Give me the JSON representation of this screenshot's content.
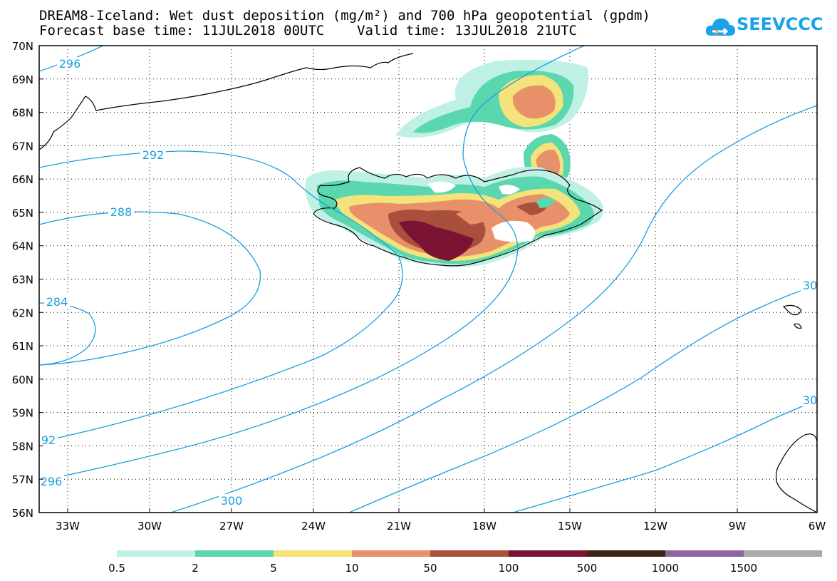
{
  "title": {
    "line1": "DREAM8-Iceland: Wet dust deposition (mg/m²) and 700 hPa geopotential (gpdm)",
    "line2": "Forecast base time: 11JUL2018 00UTC    Valid time: 13JUL2018 21UTC"
  },
  "logo": {
    "text": "SEEVCCC",
    "icon": "cloud-logo-icon"
  },
  "map": {
    "lat_labels": [
      "70N",
      "69N",
      "68N",
      "67N",
      "66N",
      "65N",
      "64N",
      "63N",
      "62N",
      "61N",
      "60N",
      "59N",
      "58N",
      "57N",
      "56N"
    ],
    "lon_labels": [
      "33W",
      "30W",
      "27W",
      "24W",
      "21W",
      "18W",
      "15W",
      "12W",
      "9W",
      "6W"
    ],
    "contour_labels": [
      {
        "text": "296",
        "id": "c296a"
      },
      {
        "text": "292",
        "id": "c292a"
      },
      {
        "text": "288",
        "id": "c288"
      },
      {
        "text": "284",
        "id": "c284"
      },
      {
        "text": "92",
        "id": "c292b"
      },
      {
        "text": "296",
        "id": "c296b"
      },
      {
        "text": "300",
        "id": "c300a"
      },
      {
        "text": "30",
        "id": "c300b"
      },
      {
        "text": "30",
        "id": "c300c"
      }
    ],
    "contour_color": "#1a9fe0",
    "coastline_color": "#000000"
  },
  "colorbar": {
    "labels": [
      "0.5",
      "2",
      "5",
      "10",
      "50",
      "100",
      "500",
      "1000",
      "1500"
    ],
    "colors": [
      "#bff0e6",
      "#5ad7ae",
      "#f4e27a",
      "#e8906a",
      "#a8503c",
      "#7a1432",
      "#3c2414",
      "#8c64a0",
      "#aaaaaa"
    ]
  }
}
